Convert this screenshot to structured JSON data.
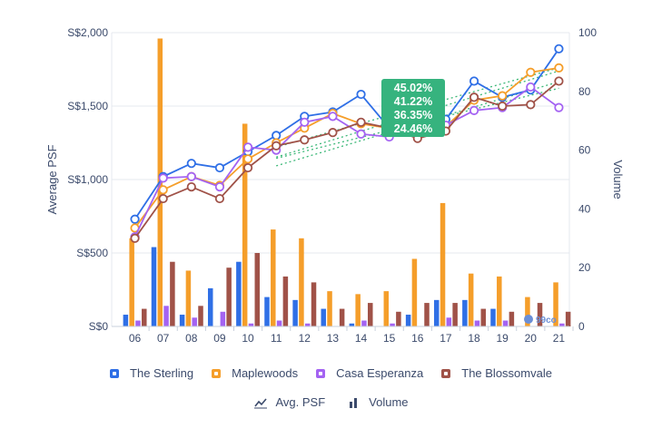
{
  "chart_data": {
    "type": "bar+line",
    "categories": [
      "06",
      "07",
      "08",
      "09",
      "10",
      "11",
      "12",
      "13",
      "14",
      "15",
      "16",
      "17",
      "18",
      "19",
      "20",
      "21"
    ],
    "ylabel_left": "Average PSF",
    "ylabel_right": "Volume",
    "y_left_ticks": [
      "S$0",
      "S$500",
      "S$1,000",
      "S$1,500",
      "S$2,000"
    ],
    "y_left_range": [
      0,
      2000
    ],
    "y_right_ticks": [
      "0",
      "20",
      "40",
      "60",
      "80",
      "100"
    ],
    "y_right_range": [
      0,
      100
    ],
    "series": [
      {
        "name": "The Sterling",
        "color": "#2f6fe6",
        "volume": [
          4,
          27,
          4,
          13,
          22,
          10,
          9,
          6,
          1,
          0,
          4,
          9,
          9,
          6,
          0,
          0
        ],
        "psf": [
          730,
          1020,
          1110,
          1080,
          1190,
          1300,
          1430,
          1460,
          1580,
          1350,
          1300,
          1410,
          1670,
          1560,
          1610,
          1890
        ]
      },
      {
        "name": "Maplewoods",
        "color": "#f59e2a",
        "volume": [
          30,
          98,
          19,
          0,
          69,
          33,
          30,
          12,
          11,
          12,
          23,
          42,
          18,
          17,
          10,
          15
        ],
        "psf": [
          670,
          930,
          1020,
          960,
          1140,
          1250,
          1350,
          1450,
          1380,
          1350,
          1330,
          1360,
          1540,
          1570,
          1730,
          1760
        ]
      },
      {
        "name": "Casa Esperanza",
        "color": "#a463f2",
        "volume": [
          2,
          7,
          3,
          5,
          1,
          2,
          1,
          0,
          2,
          1,
          0,
          3,
          2,
          2,
          0,
          1
        ],
        "psf": [
          610,
          1010,
          1020,
          950,
          1220,
          1200,
          1390,
          1430,
          1310,
          1290,
          1340,
          1370,
          1470,
          1490,
          1630,
          1490
        ]
      },
      {
        "name": "The Blossomvale",
        "color": "#a05248",
        "volume": [
          6,
          22,
          7,
          20,
          25,
          17,
          15,
          6,
          8,
          5,
          8,
          8,
          6,
          5,
          8,
          5
        ],
        "psf": [
          600,
          870,
          950,
          870,
          1080,
          1230,
          1270,
          1320,
          1390,
          1350,
          1280,
          1330,
          1560,
          1500,
          1510,
          1670
        ]
      }
    ],
    "callouts": [
      "45.02%",
      "41.22%",
      "36.35%",
      "24.46%"
    ],
    "watermark": "99co",
    "legend_placement": "bottom",
    "modes": [
      "Avg. PSF",
      "Volume"
    ]
  }
}
